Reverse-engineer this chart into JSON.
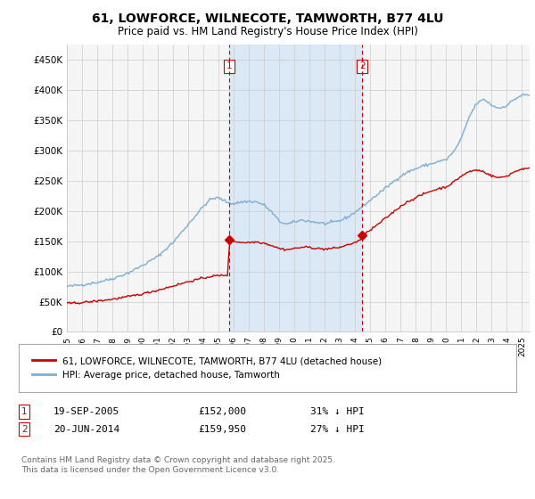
{
  "title": "61, LOWFORCE, WILNECOTE, TAMWORTH, B77 4LU",
  "subtitle": "Price paid vs. HM Land Registry's House Price Index (HPI)",
  "plot_bg": "#dce9f5",
  "chart_bg": "#f0f4f8",
  "ylim": [
    0,
    475000
  ],
  "yticks": [
    0,
    50000,
    100000,
    150000,
    200000,
    250000,
    300000,
    350000,
    400000,
    450000
  ],
  "ytick_labels": [
    "£0",
    "£50K",
    "£100K",
    "£150K",
    "£200K",
    "£250K",
    "£300K",
    "£350K",
    "£400K",
    "£450K"
  ],
  "xlim_start": 1995.0,
  "xlim_end": 2025.5,
  "vline1_x": 2005.72,
  "vline2_x": 2014.47,
  "sale1_date": "19-SEP-2005",
  "sale1_price": "£152,000",
  "sale1_hpi": "31% ↓ HPI",
  "sale2_date": "20-JUN-2014",
  "sale2_price": "£159,950",
  "sale2_hpi": "27% ↓ HPI",
  "sale1_marker_x": 2005.72,
  "sale1_marker_y": 152000,
  "sale2_marker_x": 2014.47,
  "sale2_marker_y": 159950,
  "legend_label_red": "61, LOWFORCE, WILNECOTE, TAMWORTH, B77 4LU (detached house)",
  "legend_label_blue": "HPI: Average price, detached house, Tamworth",
  "footer": "Contains HM Land Registry data © Crown copyright and database right 2025.\nThis data is licensed under the Open Government Licence v3.0.",
  "red_color": "#cc0000",
  "blue_color": "#7bafd4",
  "shade_color": "#d0e4f7",
  "vline_color": "#cc0000",
  "grid_color": "#cccccc"
}
